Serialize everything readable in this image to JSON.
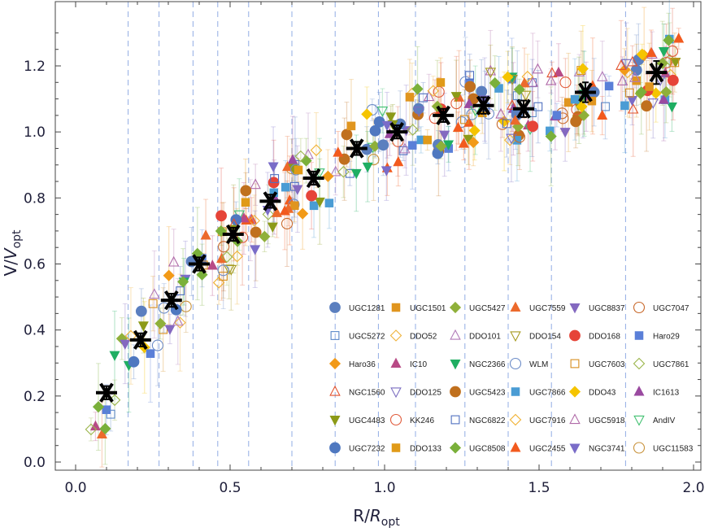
{
  "chart_data": {
    "type": "scatter",
    "xlabel": "R/R_opt",
    "ylabel": "V/V_opt",
    "xlim": [
      -0.05,
      2.03
    ],
    "ylim": [
      -0.03,
      1.38
    ],
    "x_ticks": [
      "0.0",
      "0.5",
      "1.0",
      "1.5",
      "2.0"
    ],
    "y_ticks": [
      "0.0",
      "0.2",
      "0.4",
      "0.6",
      "0.8",
      "1.0",
      "1.2"
    ],
    "x_tick_values": [
      0,
      0.5,
      1,
      1.5,
      2
    ],
    "y_tick_values": [
      0,
      0.2,
      0.4,
      0.6,
      0.8,
      1.0,
      1.2
    ],
    "bin_edges": [
      0.17,
      0.27,
      0.38,
      0.46,
      0.56,
      0.7,
      0.84,
      0.98,
      1.1,
      1.26,
      1.4,
      1.54,
      1.78
    ],
    "legend_position": "bottom-right",
    "legend_columns": 6,
    "grid": false,
    "series": [
      {
        "name": "UGC1281",
        "color": "#5b7fbf",
        "marker": "circle-filled"
      },
      {
        "name": "UGC1501",
        "color": "#e0951f",
        "marker": "square-filled"
      },
      {
        "name": "UGC5427",
        "color": "#8fb03a",
        "marker": "diamond-filled"
      },
      {
        "name": "UGC7559",
        "color": "#ec6a2c",
        "marker": "triangle-up-filled"
      },
      {
        "name": "UGC8837",
        "color": "#8469c0",
        "marker": "triangle-down-filled"
      },
      {
        "name": "UGC7047",
        "color": "#c8682a",
        "marker": "circle-open"
      },
      {
        "name": "UGC5272",
        "color": "#5b88c8",
        "marker": "square-open"
      },
      {
        "name": "DDO52",
        "color": "#f0b23a",
        "marker": "diamond-open"
      },
      {
        "name": "DDO101",
        "color": "#b07ab8",
        "marker": "triangle-up-open"
      },
      {
        "name": "DDO154",
        "color": "#a69a20",
        "marker": "triangle-down-open"
      },
      {
        "name": "DDO168",
        "color": "#e64438",
        "marker": "circle-filled"
      },
      {
        "name": "Haro29",
        "color": "#5a7fd8",
        "marker": "square-filled"
      },
      {
        "name": "Haro36",
        "color": "#f29a18",
        "marker": "diamond-filled"
      },
      {
        "name": "IC10",
        "color": "#b84a86",
        "marker": "triangle-up-filled"
      },
      {
        "name": "NGC2366",
        "color": "#1fae62",
        "marker": "triangle-down-filled"
      },
      {
        "name": "WLM",
        "color": "#6c8cc8",
        "marker": "circle-open"
      },
      {
        "name": "UGC7603",
        "color": "#d88e1e",
        "marker": "square-open"
      },
      {
        "name": "UGC7861",
        "color": "#9ab54a",
        "marker": "diamond-open"
      },
      {
        "name": "NGC1560",
        "color": "#e3512c",
        "marker": "triangle-up-open"
      },
      {
        "name": "DDO125",
        "color": "#7a6cc0",
        "marker": "triangle-down-open"
      },
      {
        "name": "UGC5423",
        "color": "#c0701e",
        "marker": "circle-filled"
      },
      {
        "name": "UGC7866",
        "color": "#4a9cd4",
        "marker": "square-filled"
      },
      {
        "name": "DDO43",
        "color": "#f5c400",
        "marker": "diamond-filled"
      },
      {
        "name": "IC1613",
        "color": "#9a4aa0",
        "marker": "triangle-up-filled"
      },
      {
        "name": "UGC4483",
        "color": "#8c9a18",
        "marker": "triangle-down-filled"
      },
      {
        "name": "KK246",
        "color": "#e05a3a",
        "marker": "circle-open"
      },
      {
        "name": "NGC6822",
        "color": "#4f70c0",
        "marker": "square-open"
      },
      {
        "name": "UGC7916",
        "color": "#f0b030",
        "marker": "diamond-open"
      },
      {
        "name": "UGC5918",
        "color": "#b06aa8",
        "marker": "triangle-up-open"
      },
      {
        "name": "AndIV",
        "color": "#40c070",
        "marker": "triangle-down-open"
      },
      {
        "name": "UGC7232",
        "color": "#4f78c0",
        "marker": "circle-filled"
      },
      {
        "name": "DDO133",
        "color": "#e09a18",
        "marker": "square-filled"
      },
      {
        "name": "UGC8508",
        "color": "#7ab03a",
        "marker": "diamond-filled"
      },
      {
        "name": "UGC2455",
        "color": "#f25a1e",
        "marker": "triangle-up-filled"
      },
      {
        "name": "NGC3741",
        "color": "#7a6cc8",
        "marker": "triangle-down-filled"
      },
      {
        "name": "UGC11583",
        "color": "#c8923a",
        "marker": "circle-open"
      }
    ],
    "binned_mean": {
      "name": "",
      "x": [
        0.1,
        0.21,
        0.31,
        0.4,
        0.51,
        0.63,
        0.77,
        0.91,
        1.04,
        1.19,
        1.32,
        1.45,
        1.65,
        1.88
      ],
      "y": [
        0.21,
        0.37,
        0.49,
        0.6,
        0.69,
        0.79,
        0.86,
        0.95,
        1.0,
        1.05,
        1.08,
        1.07,
        1.12,
        1.18
      ],
      "yerr": [
        0.02,
        0.02,
        0.02,
        0.02,
        0.02,
        0.02,
        0.02,
        0.02,
        0.02,
        0.02,
        0.025,
        0.025,
        0.03,
        0.035
      ]
    }
  }
}
